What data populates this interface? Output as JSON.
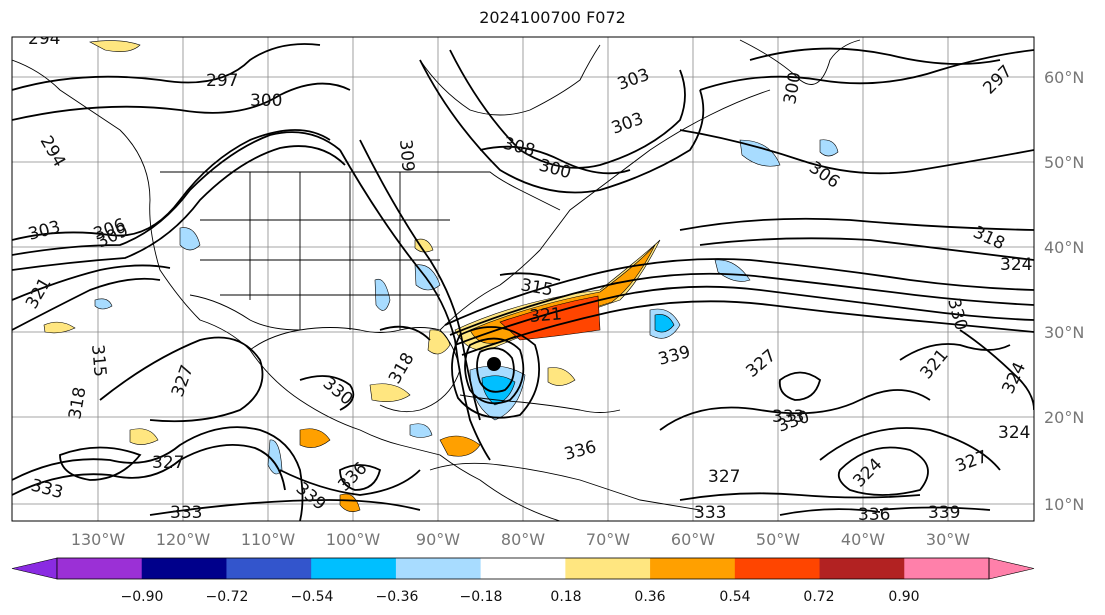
{
  "title": "2024100700 F072",
  "colors": {
    "contour": "#000000",
    "coast": "#000000",
    "grid": "#888888",
    "tick_text": "#777777"
  },
  "lon_labels": [
    "130°W",
    "120°W",
    "110°W",
    "100°W",
    "90°W",
    "80°W",
    "70°W",
    "60°W",
    "50°W",
    "40°W",
    "30°W"
  ],
  "lat_labels": [
    "60°N",
    "50°N",
    "40°N",
    "30°N",
    "20°N",
    "10°N"
  ],
  "contour_labels": [
    "294",
    "297",
    "300",
    "294",
    "300",
    "303",
    "306",
    "309",
    "308",
    "303",
    "300",
    "306",
    "297",
    "318",
    "303",
    "309",
    "321",
    "315",
    "321",
    "324",
    "330",
    "315",
    "327",
    "318",
    "339",
    "330",
    "333",
    "336",
    "321",
    "327",
    "324",
    "339",
    "336",
    "318",
    "327",
    "327",
    "333",
    "333",
    "336",
    "339",
    "324",
    "327",
    "324",
    "333",
    "330"
  ],
  "colorbar": {
    "tick_labels": [
      "−0.90",
      "−0.72",
      "−0.54",
      "−0.36",
      "−0.18",
      "0.18",
      "0.36",
      "0.54",
      "0.72",
      "0.90"
    ],
    "under_color": "#8a2be2",
    "over_color": "#ff80aa",
    "colors": [
      "#9b30d6",
      "#00008b",
      "#3355cc",
      "#00bfff",
      "#a8dcff",
      "#ffffff",
      "#ffe680",
      "#ffa000",
      "#ff4500",
      "#b22222",
      "#ff80aa"
    ]
  }
}
